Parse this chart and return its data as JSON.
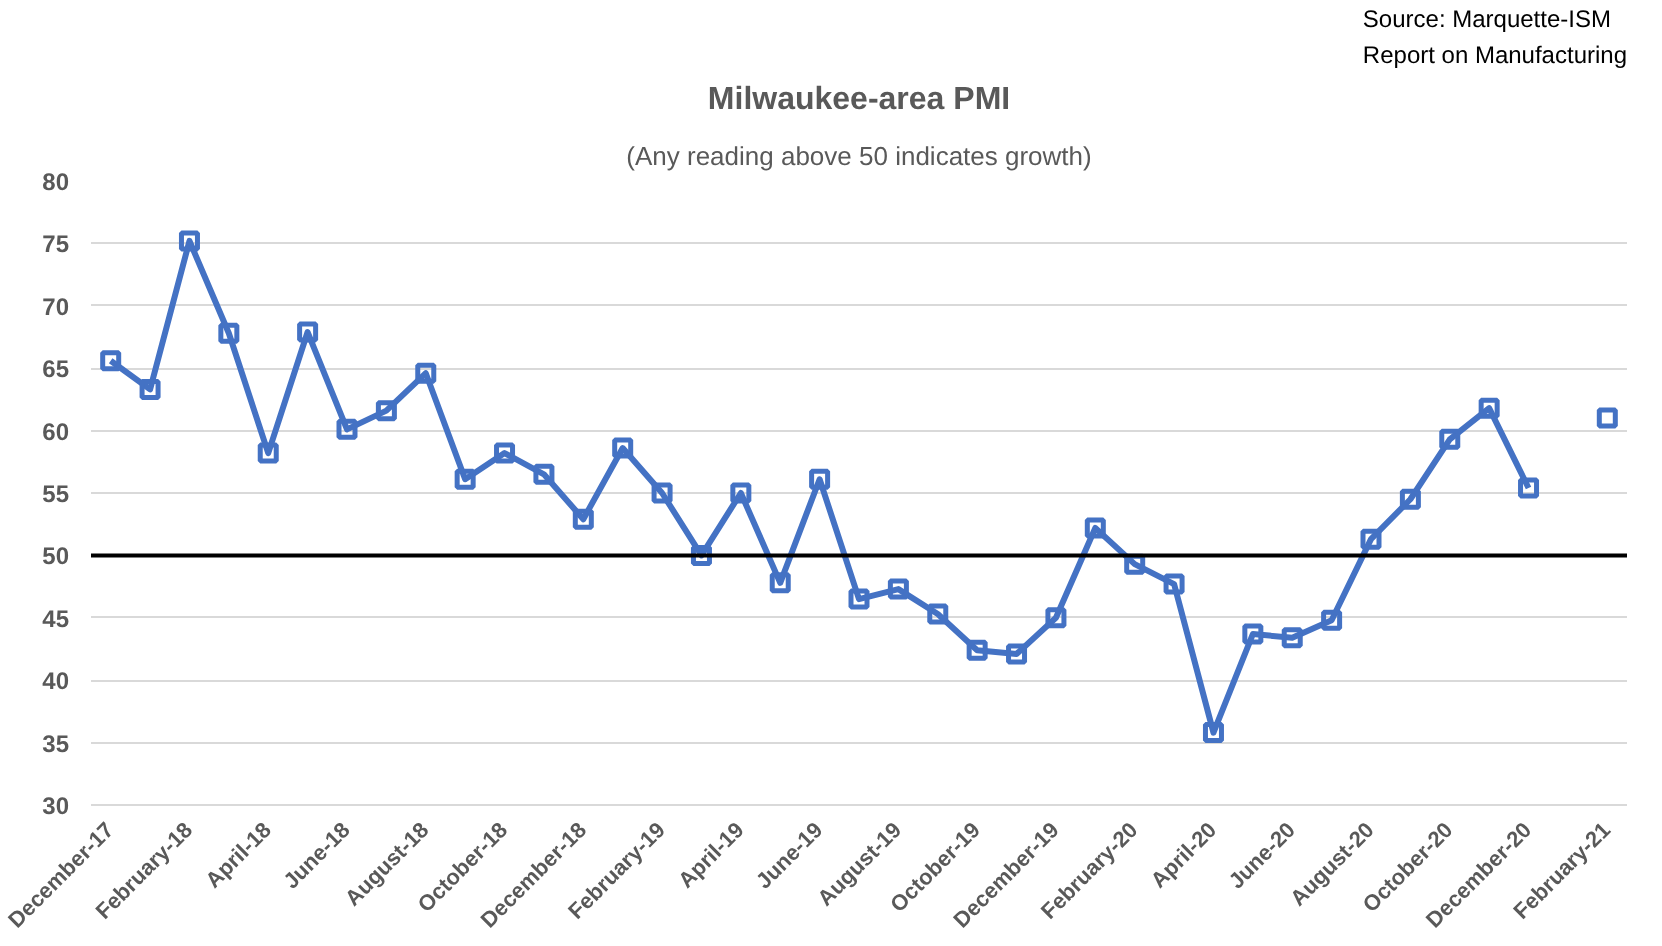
{
  "chart_data": {
    "type": "line",
    "title": "Milwaukee-area PMI",
    "subtitle": "(Any reading above 50 indicates growth)",
    "annotations": [
      "Source: Marquette-ISM\nReport on Manufacturing"
    ],
    "categories": [
      "December-17",
      null,
      "February-18",
      null,
      "April-18",
      null,
      "June-18",
      null,
      "August-18",
      null,
      "October-18",
      null,
      "December-18",
      null,
      "February-19",
      null,
      "April-19",
      null,
      "June-19",
      null,
      "August-19",
      null,
      "October-19",
      null,
      "December-19",
      null,
      "February-20",
      null,
      "April-20",
      null,
      "June-20",
      null,
      "August-20",
      null,
      "October-20",
      null,
      "December-20",
      null,
      "February-21"
    ],
    "series": [
      {
        "color": "#4472c4",
        "values": [
          65.6,
          63.3,
          75.2,
          67.8,
          58.2,
          67.9,
          60.1,
          61.6,
          64.6,
          56.1,
          58.2,
          56.5,
          52.9,
          58.6,
          55.0,
          50.0,
          55.0,
          47.8,
          56.1,
          46.5,
          47.3,
          45.3,
          42.4,
          42.1,
          45.0,
          52.2,
          49.3,
          47.7,
          35.8,
          43.7,
          43.4,
          44.8,
          51.3,
          54.5,
          59.3,
          61.8,
          55.4,
          null,
          61.0
        ]
      }
    ],
    "ylim": [
      30,
      80
    ],
    "yticks": [
      30,
      35,
      40,
      45,
      50,
      55,
      60,
      65,
      70,
      75,
      80
    ],
    "grid": "y",
    "marker": "square",
    "line_style": "solid",
    "ref_lines": [
      {
        "axis": "y",
        "value": 50,
        "color": "#000000"
      }
    ]
  }
}
